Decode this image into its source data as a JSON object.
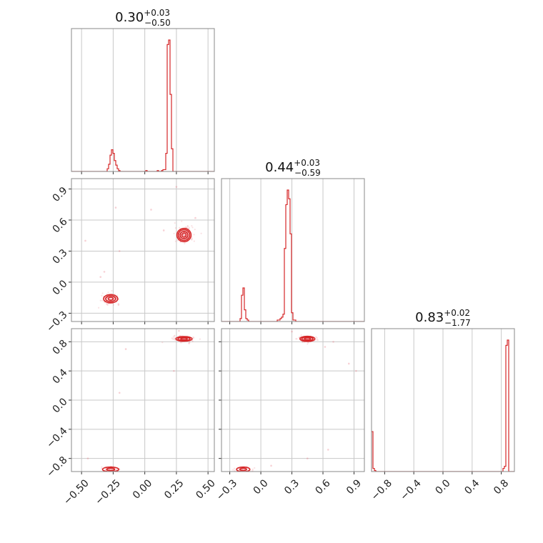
{
  "chart_data": {
    "type": "corner",
    "color": "#d62728",
    "titles": [
      {
        "median": "0.30",
        "plus": "+0.03",
        "minus": "−0.50"
      },
      {
        "median": "0.44",
        "plus": "+0.03",
        "minus": "−0.59"
      },
      {
        "median": "0.83",
        "plus": "+0.02",
        "minus": "−1.77"
      }
    ],
    "params": [
      {
        "range": [
          -0.58,
          0.55
        ],
        "ticks": [
          -0.5,
          -0.25,
          0.0,
          0.25,
          0.5
        ],
        "ticklabels": [
          "−0.50",
          "−0.25",
          "0.00",
          "0.25",
          "0.50"
        ]
      },
      {
        "range": [
          -0.38,
          1.0
        ],
        "ticks": [
          -0.3,
          0.0,
          0.3,
          0.6,
          0.9
        ],
        "ticklabels": [
          "−0.3",
          "0.0",
          "0.3",
          "0.6",
          "0.9"
        ]
      },
      {
        "range": [
          -0.98,
          0.98
        ],
        "ticks": [
          -0.8,
          -0.4,
          0.0,
          0.4,
          0.8
        ],
        "ticklabels": [
          "−0.8",
          "−0.4",
          "0.0",
          "0.4",
          "0.8"
        ]
      }
    ],
    "histograms": [
      {
        "param": 0,
        "bin_lo": -0.58,
        "bin_width": 0.0113,
        "counts": [
          0,
          0,
          0,
          0,
          0,
          0,
          0,
          0,
          0,
          0,
          0,
          0,
          0,
          0,
          0,
          0,
          0,
          0,
          0,
          0,
          0,
          0,
          0,
          0,
          0,
          3,
          8,
          18,
          24,
          20,
          12,
          7,
          3,
          1,
          0,
          0,
          0,
          0,
          0,
          0,
          0,
          0,
          0,
          0,
          0,
          0,
          0,
          0,
          0,
          0,
          0,
          0,
          1,
          0,
          0,
          0,
          0,
          0,
          0,
          0,
          1,
          0,
          0,
          1,
          2,
          2,
          20,
          140,
          145,
          85,
          25,
          0,
          0,
          0,
          0,
          0,
          0,
          0,
          0,
          0,
          0,
          0,
          0,
          0,
          0,
          0,
          0,
          0,
          0,
          0,
          0,
          0,
          0,
          0,
          0,
          0,
          0,
          0,
          0,
          0
        ]
      },
      {
        "param": 1,
        "bin_lo": -0.38,
        "bin_width": 0.0138,
        "counts": [
          0,
          0,
          0,
          0,
          0,
          0,
          0,
          0,
          0,
          0,
          0,
          0,
          0,
          2,
          18,
          23,
          8,
          2,
          1,
          0,
          0,
          0,
          0,
          0,
          0,
          0,
          0,
          0,
          0,
          0,
          0,
          0,
          0,
          0,
          0,
          0,
          0,
          0,
          0,
          1,
          1,
          2,
          3,
          5,
          50,
          80,
          90,
          84,
          60,
          6,
          1,
          1,
          0,
          0,
          0,
          0,
          0,
          0,
          0,
          0,
          0,
          0,
          0,
          0,
          0,
          0,
          0,
          0,
          0,
          0,
          0,
          0,
          0,
          0,
          0,
          0,
          0,
          0,
          0,
          0,
          0,
          0,
          0,
          0,
          0,
          0,
          0,
          0,
          0,
          0,
          0,
          0,
          0,
          0,
          0,
          0,
          0,
          0,
          0,
          0
        ]
      },
      {
        "param": 2,
        "bin_lo": -0.98,
        "bin_width": 0.0196,
        "counts": [
          38,
          3,
          1,
          0,
          0,
          0,
          0,
          0,
          0,
          0,
          0,
          0,
          0,
          0,
          0,
          0,
          0,
          0,
          0,
          0,
          0,
          0,
          0,
          0,
          0,
          0,
          0,
          0,
          0,
          0,
          0,
          0,
          0,
          0,
          0,
          0,
          0,
          0,
          0,
          0,
          0,
          0,
          0,
          0,
          0,
          0,
          0,
          0,
          0,
          0,
          0,
          0,
          0,
          0,
          0,
          0,
          0,
          0,
          0,
          0,
          0,
          0,
          0,
          0,
          0,
          0,
          0,
          0,
          0,
          0,
          0,
          0,
          0,
          0,
          0,
          0,
          0,
          0,
          0,
          0,
          0,
          0,
          0,
          0,
          0,
          0,
          0,
          0,
          0,
          0,
          0,
          0,
          3,
          5,
          120,
          125,
          0,
          0,
          0,
          0
        ]
      }
    ],
    "scatter": [
      {
        "x": 0,
        "y": 1,
        "blobs": [
          {
            "cx": 0.31,
            "cy": 0.455,
            "sx": 0.035,
            "sy": 0.04,
            "n": 150,
            "contours": [
              0.3,
              0.55,
              0.8,
              1.0
            ]
          },
          {
            "cx": -0.27,
            "cy": -0.16,
            "sx": 0.035,
            "sy": 0.025,
            "n": 90,
            "contours": [
              0.35,
              0.7,
              1.0
            ]
          }
        ],
        "outliers": [
          [
            -0.47,
            0.4
          ],
          [
            -0.23,
            0.72
          ],
          [
            -0.2,
            0.3
          ],
          [
            0.15,
            0.5
          ],
          [
            0.25,
            0.92
          ],
          [
            0.4,
            0.62
          ],
          [
            -0.32,
            0.1
          ],
          [
            0.05,
            0.7
          ],
          [
            -0.35,
            0.05
          ]
        ]
      },
      {
        "x": 0,
        "y": 2,
        "blobs": [
          {
            "cx": 0.31,
            "cy": 0.84,
            "sx": 0.04,
            "sy": 0.02,
            "n": 120,
            "contours": [
              0.4,
              0.75,
              1.0
            ]
          },
          {
            "cx": -0.27,
            "cy": -0.95,
            "sx": 0.04,
            "sy": 0.02,
            "n": 60,
            "contours": [
              0.5,
              1.0
            ]
          }
        ],
        "outliers": [
          [
            -0.15,
            0.7
          ],
          [
            0.23,
            0.4
          ],
          [
            -0.2,
            0.1
          ],
          [
            0.35,
            0.78
          ],
          [
            -0.45,
            -0.8
          ],
          [
            0.27,
            0.95
          ]
        ]
      },
      {
        "x": 1,
        "y": 2,
        "blobs": [
          {
            "cx": 0.45,
            "cy": 0.84,
            "sx": 0.045,
            "sy": 0.022,
            "n": 120,
            "contours": [
              0.4,
              0.75,
              1.0
            ]
          },
          {
            "cx": -0.17,
            "cy": -0.95,
            "sx": 0.04,
            "sy": 0.02,
            "n": 60,
            "contours": [
              0.5,
              1.0
            ]
          }
        ],
        "outliers": [
          [
            0.62,
            0.73
          ],
          [
            0.85,
            0.5
          ],
          [
            0.3,
            0.94
          ],
          [
            0.7,
            0.8
          ],
          [
            0.92,
            0.4
          ],
          [
            0.1,
            -0.9
          ],
          [
            0.45,
            -0.8
          ],
          [
            0.65,
            -0.68
          ]
        ]
      }
    ]
  }
}
